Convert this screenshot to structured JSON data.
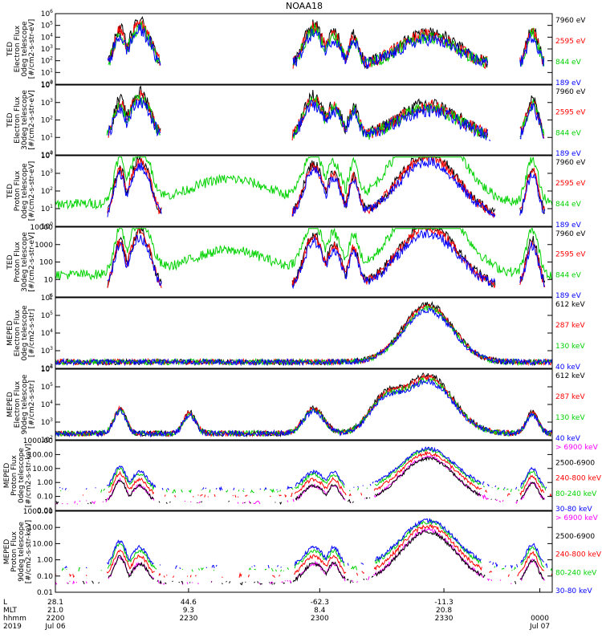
{
  "title": "NOAA18",
  "colors": {
    "black": "#000000",
    "red": "#ff0000",
    "green": "#00d200",
    "blue": "#0000ff",
    "magenta": "#ff00ff"
  },
  "chart_data": [
    {
      "type": "line",
      "ylog": true,
      "ytick_labels": [
        "10^0",
        "10^1",
        "10^2",
        "10^3",
        "10^4",
        "10^5",
        "10^6"
      ],
      "ylabel": [
        "TED",
        "Electron Flux",
        "0deg telescope",
        "[#/cm2-s-str-eV]"
      ],
      "legend": [
        {
          "label": "7960 eV",
          "color": "#000000"
        },
        {
          "label": "2595 eV",
          "color": "#ff0000"
        },
        {
          "label": "844 eV",
          "color": "#00d200"
        },
        {
          "label": "189 eV",
          "color": "#0000ff"
        }
      ],
      "series_coverage": "sparse bursts near L-shell crossings; auroral peak ~10^2-10^3 around 23:30 UT"
    },
    {
      "type": "line",
      "ylog": true,
      "ytick_labels": [
        "10^0",
        "10^1",
        "10^2",
        "10^3",
        "10^4"
      ],
      "ylabel": [
        "TED",
        "Electron Flux",
        "30deg telescope",
        "[#/cm2-s-str-eV]"
      ],
      "legend": [
        {
          "label": "7960 eV",
          "color": "#000000"
        },
        {
          "label": "2595 eV",
          "color": "#ff0000"
        },
        {
          "label": "844 eV",
          "color": "#00d200"
        },
        {
          "label": "189 eV",
          "color": "#0000ff"
        }
      ]
    },
    {
      "type": "line",
      "ylog": true,
      "ytick_labels": [
        "10^0",
        "10^1",
        "10^2",
        "10^3",
        "10^4"
      ],
      "ylabel": [
        "TED",
        "Proton Flux",
        "0deg telescope",
        "[#/cm2-s-str-eV]"
      ],
      "legend": [
        {
          "label": "7960 eV",
          "color": "#000000"
        },
        {
          "label": "2595 eV",
          "color": "#ff0000"
        },
        {
          "label": "844 eV",
          "color": "#00d200"
        },
        {
          "label": "189 eV",
          "color": "#0000ff"
        }
      ]
    },
    {
      "type": "line",
      "ylog": true,
      "ytick_labels": [
        "1",
        "10",
        "100",
        "1000",
        "10000"
      ],
      "ylabel": [
        "TED",
        "Proton Flux",
        "30deg telescope",
        "[#/cm2-s-str-eV]"
      ],
      "legend": [
        {
          "label": "7960 eV",
          "color": "#000000"
        },
        {
          "label": "2595 eV",
          "color": "#ff0000"
        },
        {
          "label": "844 eV",
          "color": "#00d200"
        },
        {
          "label": "189 eV",
          "color": "#0000ff"
        }
      ]
    },
    {
      "type": "line",
      "ylog": true,
      "ytick_labels": [
        "10^2",
        "10^3",
        "10^4",
        "10^5",
        "10^6"
      ],
      "ylabel": [
        "MEPED",
        "Electron Flux",
        "0deg telescope",
        "[#/cm2-s-str]"
      ],
      "legend": [
        {
          "label": "612 keV",
          "color": "#000000"
        },
        {
          "label": "287 keV",
          "color": "#ff0000"
        },
        {
          "label": "130 keV",
          "color": "#00d200"
        },
        {
          "label": "40 keV",
          "color": "#0000ff"
        }
      ]
    },
    {
      "type": "line",
      "ylog": true,
      "ytick_labels": [
        "10^2",
        "10^3",
        "10^4",
        "10^5",
        "10^6"
      ],
      "ylabel": [
        "MEPED",
        "Electron Flux",
        "90deg telescope",
        "[#/cm2-s-str]"
      ],
      "legend": [
        {
          "label": "612 keV",
          "color": "#000000"
        },
        {
          "label": "287 keV",
          "color": "#ff0000"
        },
        {
          "label": "130 keV",
          "color": "#00d200"
        },
        {
          "label": "40 keV",
          "color": "#0000ff"
        }
      ]
    },
    {
      "type": "line",
      "ylog": true,
      "ytick_labels": [
        "0.01",
        "0.10",
        "1.00",
        "10.00",
        "100.00",
        "1000.00"
      ],
      "ylabel": [
        "MEPED",
        "Proton Flux",
        "0deg telescope",
        "[#/cm2-s-str-keV]"
      ],
      "legend": [
        {
          "label": "> 6900 keV",
          "color": "#ff00ff"
        },
        {
          "label": "2500-6900",
          "color": "#000000"
        },
        {
          "label": "240-800 keV",
          "color": "#ff0000"
        },
        {
          "label": "80-240 keV",
          "color": "#00d200"
        },
        {
          "label": "30-80 keV",
          "color": "#0000ff"
        }
      ]
    },
    {
      "type": "line",
      "ylog": true,
      "ytick_labels": [
        "0.01",
        "0.10",
        "1.00",
        "10.00",
        "100.00",
        "1000.00"
      ],
      "ylabel": [
        "MEPED",
        "Proton Flux",
        "90deg telescope",
        "[#/cm2-s-str-keV]"
      ],
      "legend": [
        {
          "label": "> 6900 keV",
          "color": "#ff00ff"
        },
        {
          "label": "2500-6900",
          "color": "#000000"
        },
        {
          "label": "240-800 keV",
          "color": "#ff0000"
        },
        {
          "label": "80-240 keV",
          "color": "#00d200"
        },
        {
          "label": "30-80 keV",
          "color": "#0000ff"
        }
      ]
    }
  ],
  "x_axis": {
    "row_labels": [
      "L",
      "MLT",
      "hhmm",
      "2019"
    ],
    "ticks": [
      {
        "L": "28.1",
        "MLT": "21.0",
        "hhmm": "2200",
        "date": "Jul 06"
      },
      {
        "L": "44.6",
        "MLT": "9.3",
        "hhmm": "2230",
        "date": ""
      },
      {
        "L": "-62.3",
        "MLT": "8.4",
        "hhmm": "2300",
        "date": ""
      },
      {
        "L": "-11.3",
        "MLT": "20.8",
        "hhmm": "2330",
        "date": ""
      },
      {
        "L": "",
        "MLT": "",
        "hhmm": "0000",
        "date": "Jul 07"
      }
    ]
  }
}
